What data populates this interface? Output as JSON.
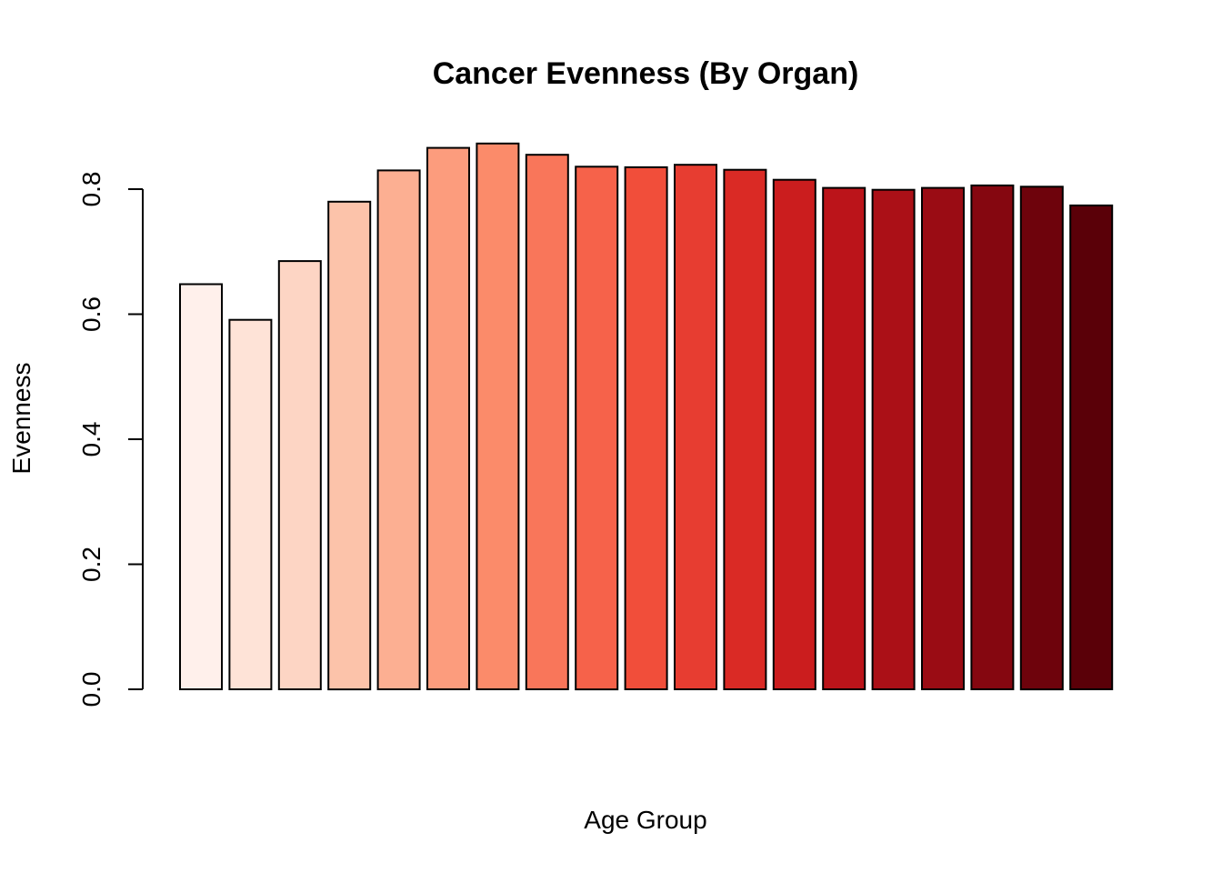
{
  "chart_data": {
    "type": "bar",
    "title": "Cancer Evenness (By Organ)",
    "xlabel": "Age Group",
    "ylabel": "Evenness",
    "ylim": [
      0,
      0.9
    ],
    "yticks": [
      "0.0",
      "0.2",
      "0.4",
      "0.6",
      "0.8"
    ],
    "ytick_values": [
      0,
      0.2,
      0.4,
      0.6,
      0.8
    ],
    "grid": false,
    "values": [
      0.648,
      0.591,
      0.685,
      0.78,
      0.83,
      0.866,
      0.873,
      0.855,
      0.836,
      0.835,
      0.839,
      0.831,
      0.815,
      0.802,
      0.799,
      0.802,
      0.806,
      0.804,
      0.774
    ],
    "colors": [
      "#FFF0EB",
      "#FEE3D7",
      "#FDD5C4",
      "#FCC3AA",
      "#FCAF92",
      "#FC9C7D",
      "#FB8B6A",
      "#F9765A",
      "#F6624A",
      "#F14E3A",
      "#E73D31",
      "#DA2A25",
      "#CB1D1E",
      "#BB141A",
      "#AB1017",
      "#9A0C14",
      "#850710",
      "#6E030C",
      "#5A0008"
    ]
  }
}
